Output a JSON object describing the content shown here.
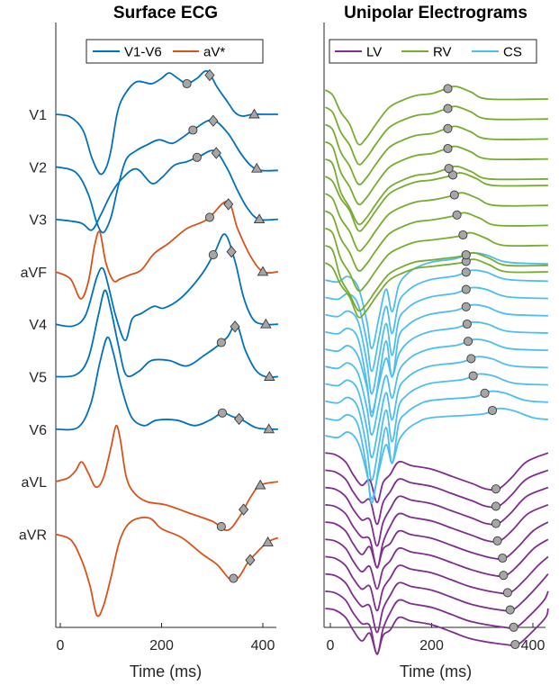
{
  "chart_data": [
    {
      "type": "line",
      "title": "Surface ECG",
      "xlabel": "Time (ms)",
      "xlim": [
        -10,
        430
      ],
      "xticks": [
        0,
        200,
        400
      ],
      "grid": false,
      "legend_position": "top",
      "series": [
        {
          "name": "V1-V6",
          "color": "#0072BD"
        },
        {
          "name": "aV*",
          "color": "#D95319"
        }
      ],
      "leads": [
        {
          "label": "V1",
          "group": "V1-V6",
          "points": [
            [
              -10,
              0
            ],
            [
              20,
              3
            ],
            [
              45,
              18
            ],
            [
              62,
              48
            ],
            [
              78,
              66
            ],
            [
              90,
              60
            ],
            [
              100,
              40
            ],
            [
              112,
              0
            ],
            [
              125,
              -20
            ],
            [
              150,
              -36
            ],
            [
              180,
              -34
            ],
            [
              200,
              -40
            ],
            [
              215,
              -46
            ],
            [
              232,
              -40
            ],
            [
              250,
              -34
            ],
            [
              270,
              -40
            ],
            [
              290,
              -48
            ],
            [
              310,
              -30
            ],
            [
              330,
              -14
            ],
            [
              345,
              -2
            ],
            [
              360,
              2
            ],
            [
              380,
              0
            ],
            [
              400,
              0
            ],
            [
              430,
              0
            ]
          ],
          "circle": 250,
          "diamond": 295,
          "triangle": 383
        },
        {
          "label": "V2",
          "group": "V1-V6",
          "points": [
            [
              -10,
              0
            ],
            [
              30,
              6
            ],
            [
              55,
              30
            ],
            [
              72,
              62
            ],
            [
              85,
              73
            ],
            [
              100,
              56
            ],
            [
              115,
              20
            ],
            [
              130,
              -8
            ],
            [
              150,
              -18
            ],
            [
              170,
              -24
            ],
            [
              195,
              -30
            ],
            [
              220,
              -26
            ],
            [
              240,
              -32
            ],
            [
              265,
              -42
            ],
            [
              300,
              -52
            ],
            [
              330,
              -38
            ],
            [
              355,
              -16
            ],
            [
              375,
              -2
            ],
            [
              395,
              4
            ],
            [
              430,
              4
            ]
          ],
          "circle": 262,
          "diamond": 302,
          "triangle": 388
        },
        {
          "label": "V3",
          "group": "V1-V6",
          "points": [
            [
              -10,
              0
            ],
            [
              40,
              4
            ],
            [
              62,
              12
            ],
            [
              80,
              -5
            ],
            [
              100,
              -28
            ],
            [
              120,
              -44
            ],
            [
              150,
              -56
            ],
            [
              180,
              -40
            ],
            [
              200,
              -46
            ],
            [
              225,
              -60
            ],
            [
              250,
              -64
            ],
            [
              275,
              -70
            ],
            [
              305,
              -76
            ],
            [
              330,
              -56
            ],
            [
              350,
              -32
            ],
            [
              370,
              -12
            ],
            [
              392,
              0
            ],
            [
              430,
              0
            ]
          ],
          "circle": 270,
          "diamond": 308,
          "triangle": 393
        },
        {
          "label": "aVF",
          "group": "aV*",
          "points": [
            [
              -10,
              0
            ],
            [
              20,
              8
            ],
            [
              40,
              30
            ],
            [
              55,
              12
            ],
            [
              68,
              -30
            ],
            [
              78,
              -44
            ],
            [
              90,
              -10
            ],
            [
              105,
              10
            ],
            [
              118,
              8
            ],
            [
              135,
              4
            ],
            [
              160,
              -2
            ],
            [
              185,
              -20
            ],
            [
              215,
              -32
            ],
            [
              250,
              -48
            ],
            [
              290,
              -58
            ],
            [
              330,
              -78
            ],
            [
              350,
              -48
            ],
            [
              375,
              -18
            ],
            [
              400,
              0
            ],
            [
              430,
              0
            ]
          ],
          "circle": 295,
          "diamond": 332,
          "triangle": 400
        },
        {
          "label": "V4",
          "group": "V1-V6",
          "points": [
            [
              -10,
              0
            ],
            [
              25,
              2
            ],
            [
              50,
              -10
            ],
            [
              72,
              -52
            ],
            [
              84,
              -62
            ],
            [
              96,
              -40
            ],
            [
              110,
              -8
            ],
            [
              128,
              18
            ],
            [
              142,
              -6
            ],
            [
              160,
              -12
            ],
            [
              185,
              -20
            ],
            [
              205,
              -18
            ],
            [
              240,
              -30
            ],
            [
              280,
              -56
            ],
            [
              305,
              -80
            ],
            [
              325,
              -100
            ],
            [
              345,
              -70
            ],
            [
              362,
              -30
            ],
            [
              380,
              -6
            ],
            [
              400,
              0
            ],
            [
              430,
              0
            ]
          ],
          "circle": 302,
          "diamond": 338,
          "triangle": 406
        },
        {
          "label": "V5",
          "group": "V1-V6",
          "points": [
            [
              -10,
              0
            ],
            [
              30,
              -2
            ],
            [
              55,
              -20
            ],
            [
              75,
              -68
            ],
            [
              88,
              -96
            ],
            [
              100,
              -74
            ],
            [
              115,
              -34
            ],
            [
              130,
              -2
            ],
            [
              155,
              -6
            ],
            [
              180,
              -18
            ],
            [
              215,
              -18
            ],
            [
              250,
              -12
            ],
            [
              285,
              -24
            ],
            [
              310,
              -34
            ],
            [
              330,
              -44
            ],
            [
              348,
              -58
            ],
            [
              365,
              -30
            ],
            [
              385,
              -8
            ],
            [
              405,
              0
            ],
            [
              430,
              0
            ]
          ],
          "circle": 318,
          "diamond": 345,
          "triangle": 413
        },
        {
          "label": "V6",
          "group": "V1-V6",
          "points": [
            [
              -10,
              0
            ],
            [
              35,
              -2
            ],
            [
              60,
              -28
            ],
            [
              78,
              -74
            ],
            [
              93,
              -102
            ],
            [
              105,
              -84
            ],
            [
              120,
              -48
            ],
            [
              140,
              -14
            ],
            [
              165,
              -4
            ],
            [
              190,
              -10
            ],
            [
              230,
              -10
            ],
            [
              265,
              -4
            ],
            [
              295,
              -10
            ],
            [
              320,
              -18
            ],
            [
              340,
              -14
            ],
            [
              360,
              -10
            ],
            [
              385,
              -2
            ],
            [
              410,
              0
            ],
            [
              430,
              0
            ]
          ],
          "circle": 320,
          "diamond": 353,
          "triangle": 412
        },
        {
          "label": "aVL",
          "group": "aV*",
          "points": [
            [
              -10,
              0
            ],
            [
              15,
              -4
            ],
            [
              30,
              -12
            ],
            [
              42,
              -22
            ],
            [
              55,
              -10
            ],
            [
              70,
              6
            ],
            [
              85,
              -4
            ],
            [
              100,
              -38
            ],
            [
              110,
              -62
            ],
            [
              118,
              -48
            ],
            [
              130,
              -6
            ],
            [
              145,
              12
            ],
            [
              170,
              22
            ],
            [
              210,
              26
            ],
            [
              250,
              34
            ],
            [
              300,
              44
            ],
            [
              330,
              54
            ],
            [
              355,
              38
            ],
            [
              375,
              18
            ],
            [
              395,
              4
            ],
            [
              430,
              0
            ]
          ],
          "circle": 318,
          "diamond": 362,
          "triangle": 395
        },
        {
          "label": "aVR",
          "group": "aV*",
          "points": [
            [
              -10,
              0
            ],
            [
              20,
              6
            ],
            [
              40,
              26
            ],
            [
              58,
              56
            ],
            [
              72,
              90
            ],
            [
              85,
              80
            ],
            [
              100,
              48
            ],
            [
              118,
              6
            ],
            [
              140,
              -14
            ],
            [
              175,
              -18
            ],
            [
              200,
              -6
            ],
            [
              240,
              4
            ],
            [
              280,
              22
            ],
            [
              310,
              34
            ],
            [
              335,
              50
            ],
            [
              352,
              48
            ],
            [
              370,
              32
            ],
            [
              392,
              18
            ],
            [
              412,
              8
            ],
            [
              430,
              4
            ]
          ],
          "circle": 342,
          "diamond": 375,
          "triangle": 410
        }
      ]
    },
    {
      "type": "line",
      "title": "Unipolar Electrograms",
      "xlabel": "Time (ms)",
      "xlim": [
        -10,
        430
      ],
      "xticks": [
        0,
        200,
        400
      ],
      "grid": false,
      "legend_position": "top",
      "series": [
        {
          "name": "LV",
          "color": "#7E2F8E"
        },
        {
          "name": "RV",
          "color": "#77AC30"
        },
        {
          "name": "CS",
          "color": "#4DBEEE"
        }
      ],
      "traces": [
        {
          "group": "RV",
          "circle": 232
        },
        {
          "group": "RV",
          "circle": 232
        },
        {
          "group": "RV",
          "circle": 232
        },
        {
          "group": "RV",
          "circle": 232
        },
        {
          "group": "RV",
          "circle": 234
        },
        {
          "group": "RV",
          "circle": 242
        },
        {
          "group": "RV",
          "circle": 245
        },
        {
          "group": "RV",
          "circle": 250
        },
        {
          "group": "RV",
          "circle": 262
        },
        {
          "group": "RV",
          "circle": 268
        },
        {
          "group": "RV",
          "circle": 268
        },
        {
          "group": "CS",
          "circle": 268
        },
        {
          "group": "CS",
          "circle": 268
        },
        {
          "group": "CS",
          "circle": 268
        },
        {
          "group": "CS",
          "circle": 268
        },
        {
          "group": "CS",
          "circle": 270
        },
        {
          "group": "CS",
          "circle": 272
        },
        {
          "group": "CS",
          "circle": 278
        },
        {
          "group": "CS",
          "circle": 282
        },
        {
          "group": "CS",
          "circle": 305
        },
        {
          "group": "CS",
          "circle": 320
        },
        {
          "group": "LV",
          "circle": 327
        },
        {
          "group": "LV",
          "circle": 327
        },
        {
          "group": "LV",
          "circle": 327
        },
        {
          "group": "LV",
          "circle": 330
        },
        {
          "group": "LV",
          "circle": 340
        },
        {
          "group": "LV",
          "circle": 342
        },
        {
          "group": "LV",
          "circle": 350
        },
        {
          "group": "LV",
          "circle": 355
        },
        {
          "group": "LV",
          "circle": 362
        },
        {
          "group": "LV",
          "circle": 365
        }
      ]
    }
  ]
}
